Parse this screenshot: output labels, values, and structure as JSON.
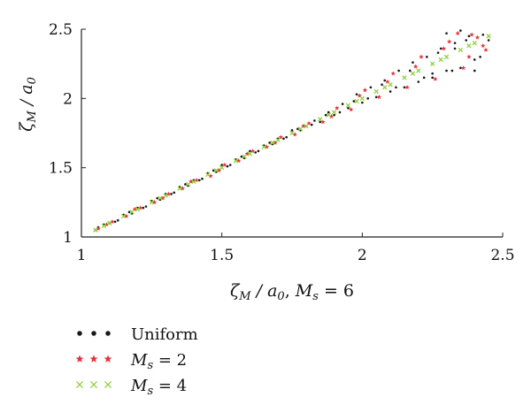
{
  "chart_data": {
    "type": "scatter",
    "title": "",
    "xlabel": "ζ_M / a_0,  M_s = 6",
    "ylabel": "ζ_M / a_0",
    "xlim": [
      1,
      2.5
    ],
    "ylim": [
      1,
      2.5
    ],
    "x_ticks": [
      "1",
      "1.5",
      "2",
      "2.5"
    ],
    "y_ticks": [
      "1",
      "1.5",
      "2",
      "2.5"
    ],
    "grid": false,
    "legend_position": "bottom-left, below plot",
    "series": [
      {
        "name": "Uniform",
        "marker": "dot",
        "color": "#1a1a1a",
        "x": [
          1.05,
          1.08,
          1.1,
          1.13,
          1.15,
          1.18,
          1.2,
          1.23,
          1.25,
          1.28,
          1.3,
          1.33,
          1.35,
          1.38,
          1.4,
          1.43,
          1.45,
          1.48,
          1.5,
          1.53,
          1.55,
          1.58,
          1.6,
          1.63,
          1.65,
          1.68,
          1.7,
          1.73,
          1.75,
          1.78,
          1.8,
          1.83,
          1.85,
          1.88,
          1.9,
          1.93,
          1.95,
          1.98,
          2.0,
          2.03,
          2.05,
          2.08,
          2.1,
          2.13,
          2.15,
          2.18,
          2.2,
          2.23,
          2.25,
          2.28,
          2.3,
          2.33,
          2.35,
          2.38,
          2.4,
          2.43,
          2.45,
          1.06,
          1.12,
          1.17,
          1.22,
          1.27,
          1.32,
          1.37,
          1.42,
          1.47,
          1.52,
          1.57,
          1.62,
          1.67,
          1.72,
          1.77,
          1.82,
          1.87,
          1.92,
          1.97,
          2.02,
          2.07,
          2.12,
          2.17,
          2.22,
          2.27,
          2.32,
          2.37,
          2.42,
          2.3,
          2.35,
          2.4,
          2.25,
          2.33
        ],
        "y": [
          1.05,
          1.09,
          1.1,
          1.12,
          1.16,
          1.17,
          1.21,
          1.22,
          1.26,
          1.27,
          1.31,
          1.32,
          1.36,
          1.37,
          1.41,
          1.42,
          1.46,
          1.47,
          1.52,
          1.52,
          1.56,
          1.57,
          1.62,
          1.62,
          1.66,
          1.67,
          1.71,
          1.72,
          1.77,
          1.77,
          1.8,
          1.84,
          1.83,
          1.9,
          1.88,
          1.96,
          1.93,
          2.03,
          1.97,
          2.08,
          2.01,
          2.13,
          2.05,
          2.2,
          2.08,
          2.26,
          2.12,
          2.3,
          2.15,
          2.36,
          2.2,
          2.4,
          2.22,
          2.45,
          2.28,
          2.46,
          2.42,
          1.07,
          1.11,
          1.18,
          1.21,
          1.28,
          1.31,
          1.38,
          1.41,
          1.48,
          1.51,
          1.58,
          1.61,
          1.68,
          1.71,
          1.78,
          1.81,
          1.88,
          1.9,
          1.98,
          2.0,
          2.1,
          2.08,
          2.2,
          2.15,
          2.33,
          2.2,
          2.42,
          2.3,
          2.47,
          2.49,
          2.2,
          2.18,
          2.36
        ]
      },
      {
        "name": "M_s = 2",
        "marker": "star",
        "color": "#e8333a",
        "x": [
          1.06,
          1.11,
          1.16,
          1.21,
          1.26,
          1.31,
          1.36,
          1.41,
          1.46,
          1.51,
          1.56,
          1.61,
          1.66,
          1.71,
          1.76,
          1.81,
          1.86,
          1.91,
          1.96,
          2.01,
          2.06,
          2.11,
          2.16,
          2.21,
          2.26,
          2.31,
          2.36,
          2.41,
          2.44,
          1.09,
          1.19,
          1.29,
          1.39,
          1.49,
          1.59,
          1.69,
          1.79,
          1.89,
          1.99,
          2.09,
          2.19,
          2.29,
          2.39,
          2.34,
          2.38,
          2.43
        ],
        "y": [
          1.06,
          1.11,
          1.15,
          1.21,
          1.25,
          1.31,
          1.35,
          1.41,
          1.44,
          1.52,
          1.55,
          1.62,
          1.65,
          1.72,
          1.74,
          1.82,
          1.83,
          1.93,
          1.92,
          2.06,
          2.01,
          2.18,
          2.08,
          2.3,
          2.14,
          2.41,
          2.22,
          2.44,
          2.35,
          1.09,
          1.2,
          1.28,
          1.4,
          1.48,
          1.6,
          1.68,
          1.8,
          1.87,
          2.02,
          2.12,
          2.23,
          2.36,
          2.46,
          2.47,
          2.3,
          2.38
        ]
      },
      {
        "name": "M_s = 4",
        "marker": "x",
        "color": "#8fd13a",
        "x": [
          1.05,
          1.1,
          1.15,
          1.2,
          1.25,
          1.3,
          1.35,
          1.4,
          1.45,
          1.5,
          1.55,
          1.6,
          1.65,
          1.7,
          1.75,
          1.8,
          1.85,
          1.9,
          1.95,
          2.0,
          2.05,
          2.1,
          2.15,
          2.2,
          2.25,
          2.3,
          2.35,
          2.4,
          2.45,
          1.08,
          1.18,
          1.28,
          1.38,
          1.48,
          1.58,
          1.68,
          1.78,
          1.88,
          1.98,
          2.08,
          2.18,
          2.28,
          2.38
        ],
        "y": [
          1.05,
          1.1,
          1.15,
          1.2,
          1.25,
          1.3,
          1.35,
          1.4,
          1.45,
          1.5,
          1.55,
          1.6,
          1.65,
          1.7,
          1.75,
          1.8,
          1.85,
          1.9,
          1.95,
          2.0,
          2.05,
          2.1,
          2.15,
          2.2,
          2.25,
          2.3,
          2.35,
          2.4,
          2.45,
          1.08,
          1.18,
          1.28,
          1.38,
          1.48,
          1.58,
          1.68,
          1.78,
          1.88,
          1.98,
          2.08,
          2.18,
          2.28,
          2.38
        ]
      }
    ]
  },
  "legend": {
    "items": [
      {
        "label": "Uniform",
        "marker": "dot",
        "color": "#1a1a1a"
      },
      {
        "label": "M_s = 2",
        "marker": "star",
        "color": "#e8333a"
      },
      {
        "label": "M_s = 4",
        "marker": "x",
        "color": "#8fd13a"
      }
    ]
  }
}
